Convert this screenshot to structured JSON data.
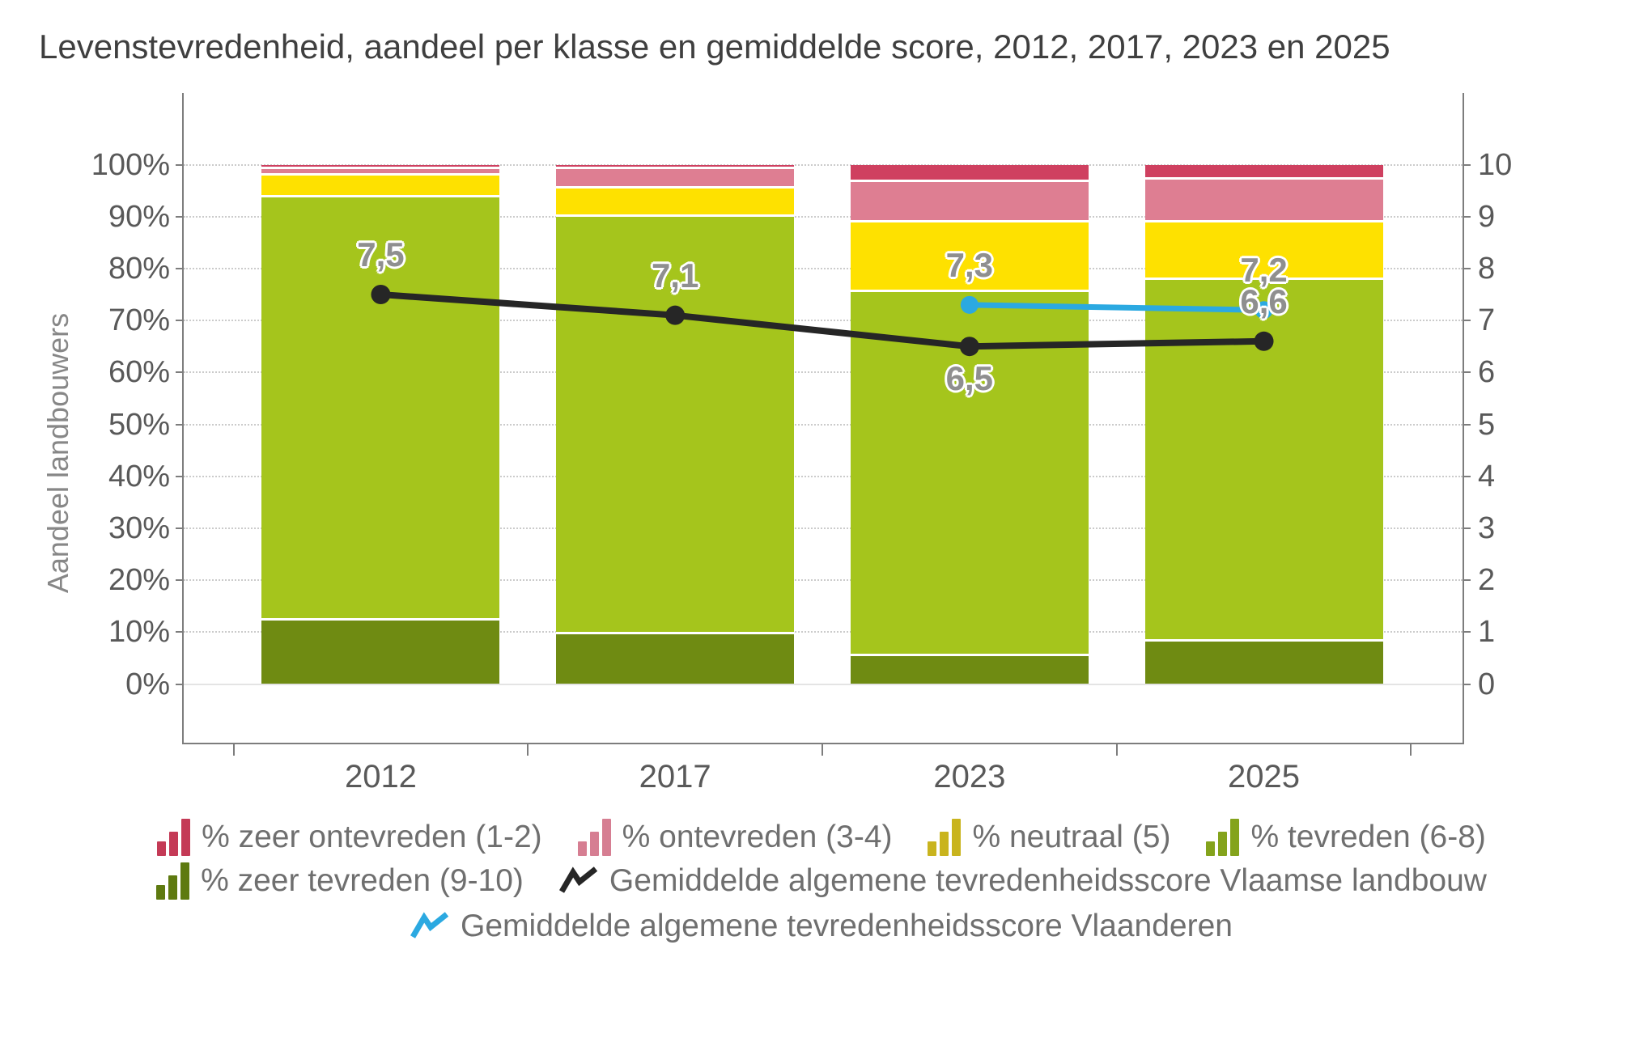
{
  "title": "Levenstevredenheid, aandeel per klasse en gemiddelde score, 2012, 2017, 2023 en 2025",
  "y_axis": {
    "title": "Aandeel landbouwers",
    "ticks": [
      "0%",
      "10%",
      "20%",
      "30%",
      "40%",
      "50%",
      "60%",
      "70%",
      "80%",
      "90%",
      "100%"
    ]
  },
  "right_axis": {
    "ticks": [
      "0",
      "1",
      "2",
      "3",
      "4",
      "5",
      "6",
      "7",
      "8",
      "9",
      "10"
    ]
  },
  "chart_data": {
    "type": "bar",
    "subtype": "stacked-100pct-with-lines",
    "title": "Levenstevredenheid, aandeel per klasse en gemiddelde score, 2012, 2017, 2023 en 2025",
    "xlabel": "",
    "ylabel": "Aandeel landbouwers",
    "ylim_left": [
      0,
      100
    ],
    "ylim_right": [
      0,
      10
    ],
    "grid": "horizontal-dotted",
    "legend_position": "bottom",
    "categories": [
      "2012",
      "2017",
      "2023",
      "2025"
    ],
    "series": [
      {
        "name": "% zeer ontevreden (1-2)",
        "color": "#cf4060",
        "values": [
          0.4,
          0.4,
          2.9,
          2.4
        ]
      },
      {
        "name": "% ontevreden (3-4)",
        "color": "#de7e92",
        "values": [
          1.2,
          3.7,
          7.8,
          8.2
        ]
      },
      {
        "name": "% neutraal (5)",
        "color": "#fee100",
        "values": [
          4.2,
          5.5,
          13.4,
          11.1
        ]
      },
      {
        "name": "% tevreden (6-8)",
        "color": "#a5c51c",
        "values": [
          81.5,
          80.4,
          70.1,
          69.6
        ]
      },
      {
        "name": "% zeer tevreden (9-10)",
        "color": "#6f8b12",
        "values": [
          12.7,
          10.0,
          5.8,
          8.7
        ]
      }
    ],
    "lines": [
      {
        "name": "Gemiddelde algemene tevredenheidsscore Vlaamse landbouw",
        "color": "#262626",
        "values": [
          7.5,
          7.1,
          6.5,
          6.6
        ],
        "labels": [
          "7,5",
          "7,1",
          "6,5",
          "6,6"
        ],
        "label_pos": [
          "above",
          "above",
          "below",
          "above"
        ]
      },
      {
        "name": "Gemiddelde algemene tevredenheidsscore Vlaanderen",
        "color": "#2ba9e1",
        "values": [
          null,
          null,
          7.3,
          7.2
        ],
        "labels": [
          null,
          null,
          "7,3",
          "7,2"
        ],
        "label_pos": [
          null,
          null,
          "above",
          "above"
        ]
      }
    ]
  },
  "legend": {
    "rows": [
      [
        {
          "icon": "bars",
          "color": "#c43a56",
          "label": "% zeer ontevreden (1-2)"
        },
        {
          "icon": "bars",
          "color": "#d67e92",
          "label": "% ontevreden (3-4)"
        },
        {
          "icon": "bars",
          "color": "#c9b41e",
          "label": "% neutraal (5)"
        },
        {
          "icon": "bars",
          "color": "#84a31c",
          "label": "% tevreden (6-8)"
        }
      ],
      [
        {
          "icon": "bars",
          "color": "#5e7a10",
          "label": "% zeer tevreden (9-10)"
        },
        {
          "icon": "line",
          "color": "#262626",
          "label": "Gemiddelde algemene tevredenheidsscore Vlaamse landbouw"
        }
      ],
      [
        {
          "icon": "line",
          "color": "#2ba9e1",
          "label": "Gemiddelde algemene tevredenheidsscore Vlaanderen"
        }
      ]
    ]
  }
}
